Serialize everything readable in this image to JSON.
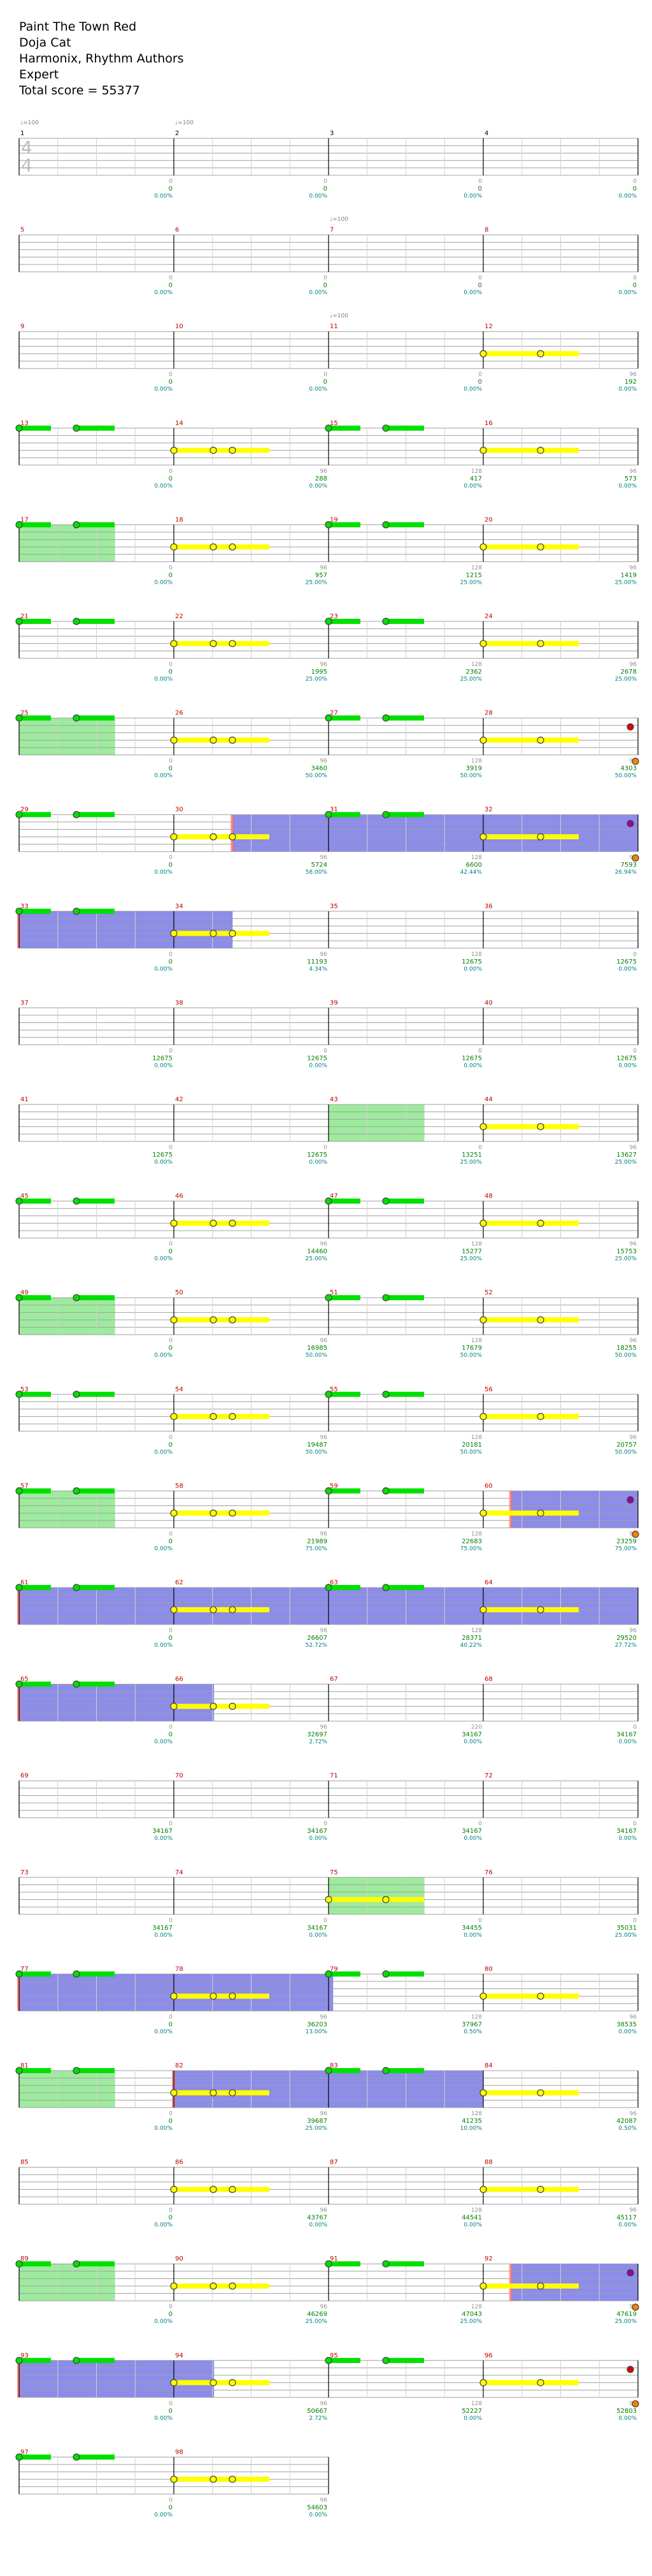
{
  "song": {
    "title": "Paint The Town Red",
    "artist": "Doja Cat",
    "charter": "Harmonix, Rhythm Authors",
    "difficulty": "Expert",
    "total_score_label": "Total score = 55377"
  },
  "time_signature": {
    "numerator": "4",
    "denominator": "4"
  },
  "tempo_markers": [
    {
      "measure": 1,
      "label": "♩=100"
    },
    {
      "measure": 2,
      "label": "♩=100"
    },
    {
      "measure": 7,
      "label": "♩=100"
    },
    {
      "measure": 11,
      "label": "♩=100"
    }
  ],
  "colors": {
    "staff_line": "#a0a0a0",
    "barline": "#000000",
    "measure_number": "#c00000",
    "score": "#008000",
    "multiplier": "#008080",
    "sustain_count": "#909090",
    "note_yellow": "#ffff00",
    "note_green": "#00e000",
    "starpower_overlay": "#00c800",
    "overdrive_overlay": "#0000d0",
    "overdrive_edge": "#ff6060"
  },
  "rows": [
    {
      "measures": [
        {
          "num": "1",
          "sustain": "0",
          "score": "0",
          "mult": "0.00%"
        },
        {
          "num": "2",
          "sustain": "0",
          "score": "0",
          "mult": "0.00%"
        },
        {
          "num": "3",
          "sustain": "0",
          "score": "0",
          "mult": "0.00%"
        },
        {
          "num": "4",
          "sustain": "0",
          "score": "0",
          "mult": "0.00%"
        }
      ]
    },
    {
      "measures": [
        {
          "num": "5",
          "sustain": "0",
          "score": "0",
          "mult": "0.00%"
        },
        {
          "num": "6",
          "sustain": "0",
          "score": "0",
          "mult": "0.00%"
        },
        {
          "num": "7",
          "sustain": "0",
          "score": "0",
          "mult": "0.00%"
        },
        {
          "num": "8",
          "sustain": "0",
          "score": "0",
          "mult": "0.00%"
        }
      ]
    },
    {
      "measures": [
        {
          "num": "9",
          "sustain": "0",
          "score": "0",
          "mult": "0.00%"
        },
        {
          "num": "10",
          "sustain": "0",
          "score": "0",
          "mult": "0.00%"
        },
        {
          "num": "11",
          "sustain": "0",
          "score": "0",
          "mult": "0.00%"
        },
        {
          "num": "12",
          "sustain": "96",
          "score": "192",
          "mult": "0.00%"
        }
      ]
    },
    {
      "measures": [
        {
          "num": "13",
          "sustain": "0",
          "score": "0",
          "mult": "0.00%"
        },
        {
          "num": "14",
          "sustain": "96",
          "score": "288",
          "mult": "0.00%"
        },
        {
          "num": "15",
          "sustain": "128",
          "score": "417",
          "mult": "0.00%"
        },
        {
          "num": "16",
          "sustain": "96",
          "score": "573",
          "mult": "0.00%"
        }
      ]
    },
    {
      "measures": [
        {
          "num": "17",
          "sustain": "0",
          "score": "0",
          "mult": "0.00%"
        },
        {
          "num": "18",
          "sustain": "96",
          "score": "957",
          "mult": "25.00%"
        },
        {
          "num": "19",
          "sustain": "128",
          "score": "1215",
          "mult": "25.00%"
        },
        {
          "num": "20",
          "sustain": "96",
          "score": "1419",
          "mult": "25.00%"
        }
      ]
    },
    {
      "measures": [
        {
          "num": "21",
          "sustain": "0",
          "score": "0",
          "mult": "0.00%"
        },
        {
          "num": "22",
          "sustain": "96",
          "score": "1995",
          "mult": "25.00%"
        },
        {
          "num": "23",
          "sustain": "128",
          "score": "2362",
          "mult": "25.00%"
        },
        {
          "num": "24",
          "sustain": "96",
          "score": "2678",
          "mult": "25.00%"
        }
      ]
    },
    {
      "measures": [
        {
          "num": "25",
          "sustain": "0",
          "score": "0",
          "mult": "0.00%"
        },
        {
          "num": "26",
          "sustain": "96",
          "score": "3460",
          "mult": "50.00%"
        },
        {
          "num": "27",
          "sustain": "128",
          "score": "3919",
          "mult": "50.00%"
        },
        {
          "num": "28",
          "sustain": "96",
          "score": "4303",
          "mult": "50.00%"
        }
      ]
    },
    {
      "measures": [
        {
          "num": "29",
          "sustain": "0",
          "score": "0",
          "mult": "0.00%"
        },
        {
          "num": "30",
          "sustain": "96",
          "score": "5724",
          "mult": "58.00%"
        },
        {
          "num": "31",
          "sustain": "128",
          "score": "6600",
          "mult": "42.44%"
        },
        {
          "num": "32",
          "sustain": "96",
          "score": "7593",
          "mult": "26.94%"
        }
      ]
    },
    {
      "measures": [
        {
          "num": "33",
          "sustain": "0",
          "score": "0",
          "mult": "0.00%"
        },
        {
          "num": "34",
          "sustain": "96",
          "score": "11193",
          "mult": "4.34%"
        },
        {
          "num": "35",
          "sustain": "128",
          "score": "12675",
          "mult": "0.00%"
        },
        {
          "num": "36",
          "sustain": "0",
          "score": "12675",
          "mult": "0.00%"
        }
      ]
    },
    {
      "measures": [
        {
          "num": "37",
          "sustain": "0",
          "score": "12675",
          "mult": "0.00%"
        },
        {
          "num": "38",
          "sustain": "0",
          "score": "12675",
          "mult": "0.00%"
        },
        {
          "num": "39",
          "sustain": "0",
          "score": "12675",
          "mult": "0.00%"
        },
        {
          "num": "40",
          "sustain": "0",
          "score": "12675",
          "mult": "0.00%"
        }
      ]
    },
    {
      "measures": [
        {
          "num": "41",
          "sustain": "0",
          "score": "12675",
          "mult": "0.00%"
        },
        {
          "num": "42",
          "sustain": "0",
          "score": "12675",
          "mult": "0.00%"
        },
        {
          "num": "43",
          "sustain": "0",
          "score": "13251",
          "mult": "25.00%"
        },
        {
          "num": "44",
          "sustain": "96",
          "score": "13627",
          "mult": "25.00%"
        }
      ]
    },
    {
      "measures": [
        {
          "num": "45",
          "sustain": "0",
          "score": "0",
          "mult": "0.00%"
        },
        {
          "num": "46",
          "sustain": "96",
          "score": "14460",
          "mult": "25.00%"
        },
        {
          "num": "47",
          "sustain": "128",
          "score": "15277",
          "mult": "25.00%"
        },
        {
          "num": "48",
          "sustain": "96",
          "score": "15753",
          "mult": "25.00%"
        }
      ]
    },
    {
      "measures": [
        {
          "num": "49",
          "sustain": "0",
          "score": "0",
          "mult": "0.00%"
        },
        {
          "num": "50",
          "sustain": "96",
          "score": "16985",
          "mult": "50.00%"
        },
        {
          "num": "51",
          "sustain": "128",
          "score": "17679",
          "mult": "50.00%"
        },
        {
          "num": "52",
          "sustain": "96",
          "score": "18255",
          "mult": "50.00%"
        }
      ]
    },
    {
      "measures": [
        {
          "num": "53",
          "sustain": "0",
          "score": "0",
          "mult": "0.00%"
        },
        {
          "num": "54",
          "sustain": "96",
          "score": "19487",
          "mult": "50.00%"
        },
        {
          "num": "55",
          "sustain": "128",
          "score": "20181",
          "mult": "50.00%"
        },
        {
          "num": "56",
          "sustain": "96",
          "score": "20757",
          "mult": "50.00%"
        }
      ]
    },
    {
      "measures": [
        {
          "num": "57",
          "sustain": "0",
          "score": "0",
          "mult": "0.00%"
        },
        {
          "num": "58",
          "sustain": "96",
          "score": "21989",
          "mult": "75.00%"
        },
        {
          "num": "59",
          "sustain": "128",
          "score": "22683",
          "mult": "75.00%"
        },
        {
          "num": "60",
          "sustain": "96",
          "score": "23259",
          "mult": "75.00%"
        }
      ]
    },
    {
      "measures": [
        {
          "num": "61",
          "sustain": "0",
          "score": "0",
          "mult": "0.00%"
        },
        {
          "num": "62",
          "sustain": "96",
          "score": "26607",
          "mult": "52.72%"
        },
        {
          "num": "63",
          "sustain": "128",
          "score": "28371",
          "mult": "40.22%"
        },
        {
          "num": "64",
          "sustain": "96",
          "score": "29520",
          "mult": "27.72%"
        }
      ]
    },
    {
      "measures": [
        {
          "num": "65",
          "sustain": "0",
          "score": "0",
          "mult": "0.00%"
        },
        {
          "num": "66",
          "sustain": "96",
          "score": "32697",
          "mult": "2.72%"
        },
        {
          "num": "67",
          "sustain": "220",
          "score": "34167",
          "mult": "0.00%"
        },
        {
          "num": "68",
          "sustain": "0",
          "score": "34167",
          "mult": "0.00%"
        }
      ]
    },
    {
      "measures": [
        {
          "num": "69",
          "sustain": "0",
          "score": "34167",
          "mult": "0.00%"
        },
        {
          "num": "70",
          "sustain": "0",
          "score": "34167",
          "mult": "0.00%"
        },
        {
          "num": "71",
          "sustain": "0",
          "score": "34167",
          "mult": "0.00%"
        },
        {
          "num": "72",
          "sustain": "0",
          "score": "34167",
          "mult": "0.00%"
        }
      ]
    },
    {
      "measures": [
        {
          "num": "73",
          "sustain": "0",
          "score": "34167",
          "mult": "0.00%"
        },
        {
          "num": "74",
          "sustain": "0",
          "score": "34167",
          "mult": "0.00%"
        },
        {
          "num": "75",
          "sustain": "0",
          "score": "34455",
          "mult": "0.00%"
        },
        {
          "num": "76",
          "sustain": "0",
          "score": "35031",
          "mult": "25.00%"
        }
      ]
    },
    {
      "measures": [
        {
          "num": "77",
          "sustain": "0",
          "score": "0",
          "mult": "0.00%"
        },
        {
          "num": "78",
          "sustain": "96",
          "score": "36203",
          "mult": "13.00%"
        },
        {
          "num": "79",
          "sustain": "128",
          "score": "37967",
          "mult": "0.50%"
        },
        {
          "num": "80",
          "sustain": "96",
          "score": "38535",
          "mult": "0.00%"
        }
      ]
    },
    {
      "measures": [
        {
          "num": "81",
          "sustain": "0",
          "score": "0",
          "mult": "0.00%"
        },
        {
          "num": "82",
          "sustain": "96",
          "score": "39687",
          "mult": "25.00%"
        },
        {
          "num": "83",
          "sustain": "128",
          "score": "41235",
          "mult": "10.00%"
        },
        {
          "num": "84",
          "sustain": "96",
          "score": "42087",
          "mult": "0.50%"
        }
      ]
    },
    {
      "measures": [
        {
          "num": "85",
          "sustain": "0",
          "score": "0",
          "mult": "0.00%"
        },
        {
          "num": "86",
          "sustain": "96",
          "score": "43767",
          "mult": "0.00%"
        },
        {
          "num": "87",
          "sustain": "128",
          "score": "44541",
          "mult": "0.00%"
        },
        {
          "num": "88",
          "sustain": "96",
          "score": "45117",
          "mult": "0.00%"
        }
      ]
    },
    {
      "measures": [
        {
          "num": "89",
          "sustain": "0",
          "score": "0",
          "mult": "0.00%"
        },
        {
          "num": "90",
          "sustain": "96",
          "score": "46269",
          "mult": "25.00%"
        },
        {
          "num": "91",
          "sustain": "128",
          "score": "47043",
          "mult": "25.00%"
        },
        {
          "num": "92",
          "sustain": "96",
          "score": "47619",
          "mult": "25.00%"
        }
      ]
    },
    {
      "measures": [
        {
          "num": "93",
          "sustain": "0",
          "score": "0",
          "mult": "0.00%"
        },
        {
          "num": "94",
          "sustain": "96",
          "score": "50667",
          "mult": "2.72%"
        },
        {
          "num": "95",
          "sustain": "128",
          "score": "52227",
          "mult": "0.00%"
        },
        {
          "num": "96",
          "sustain": "96",
          "score": "52803",
          "mult": "0.00%"
        }
      ]
    },
    {
      "measures": [
        {
          "num": "97",
          "sustain": "0",
          "score": "0",
          "mult": "0.00%"
        },
        {
          "num": "98",
          "sustain": "96",
          "score": "54603",
          "mult": "0.00%"
        }
      ]
    }
  ]
}
